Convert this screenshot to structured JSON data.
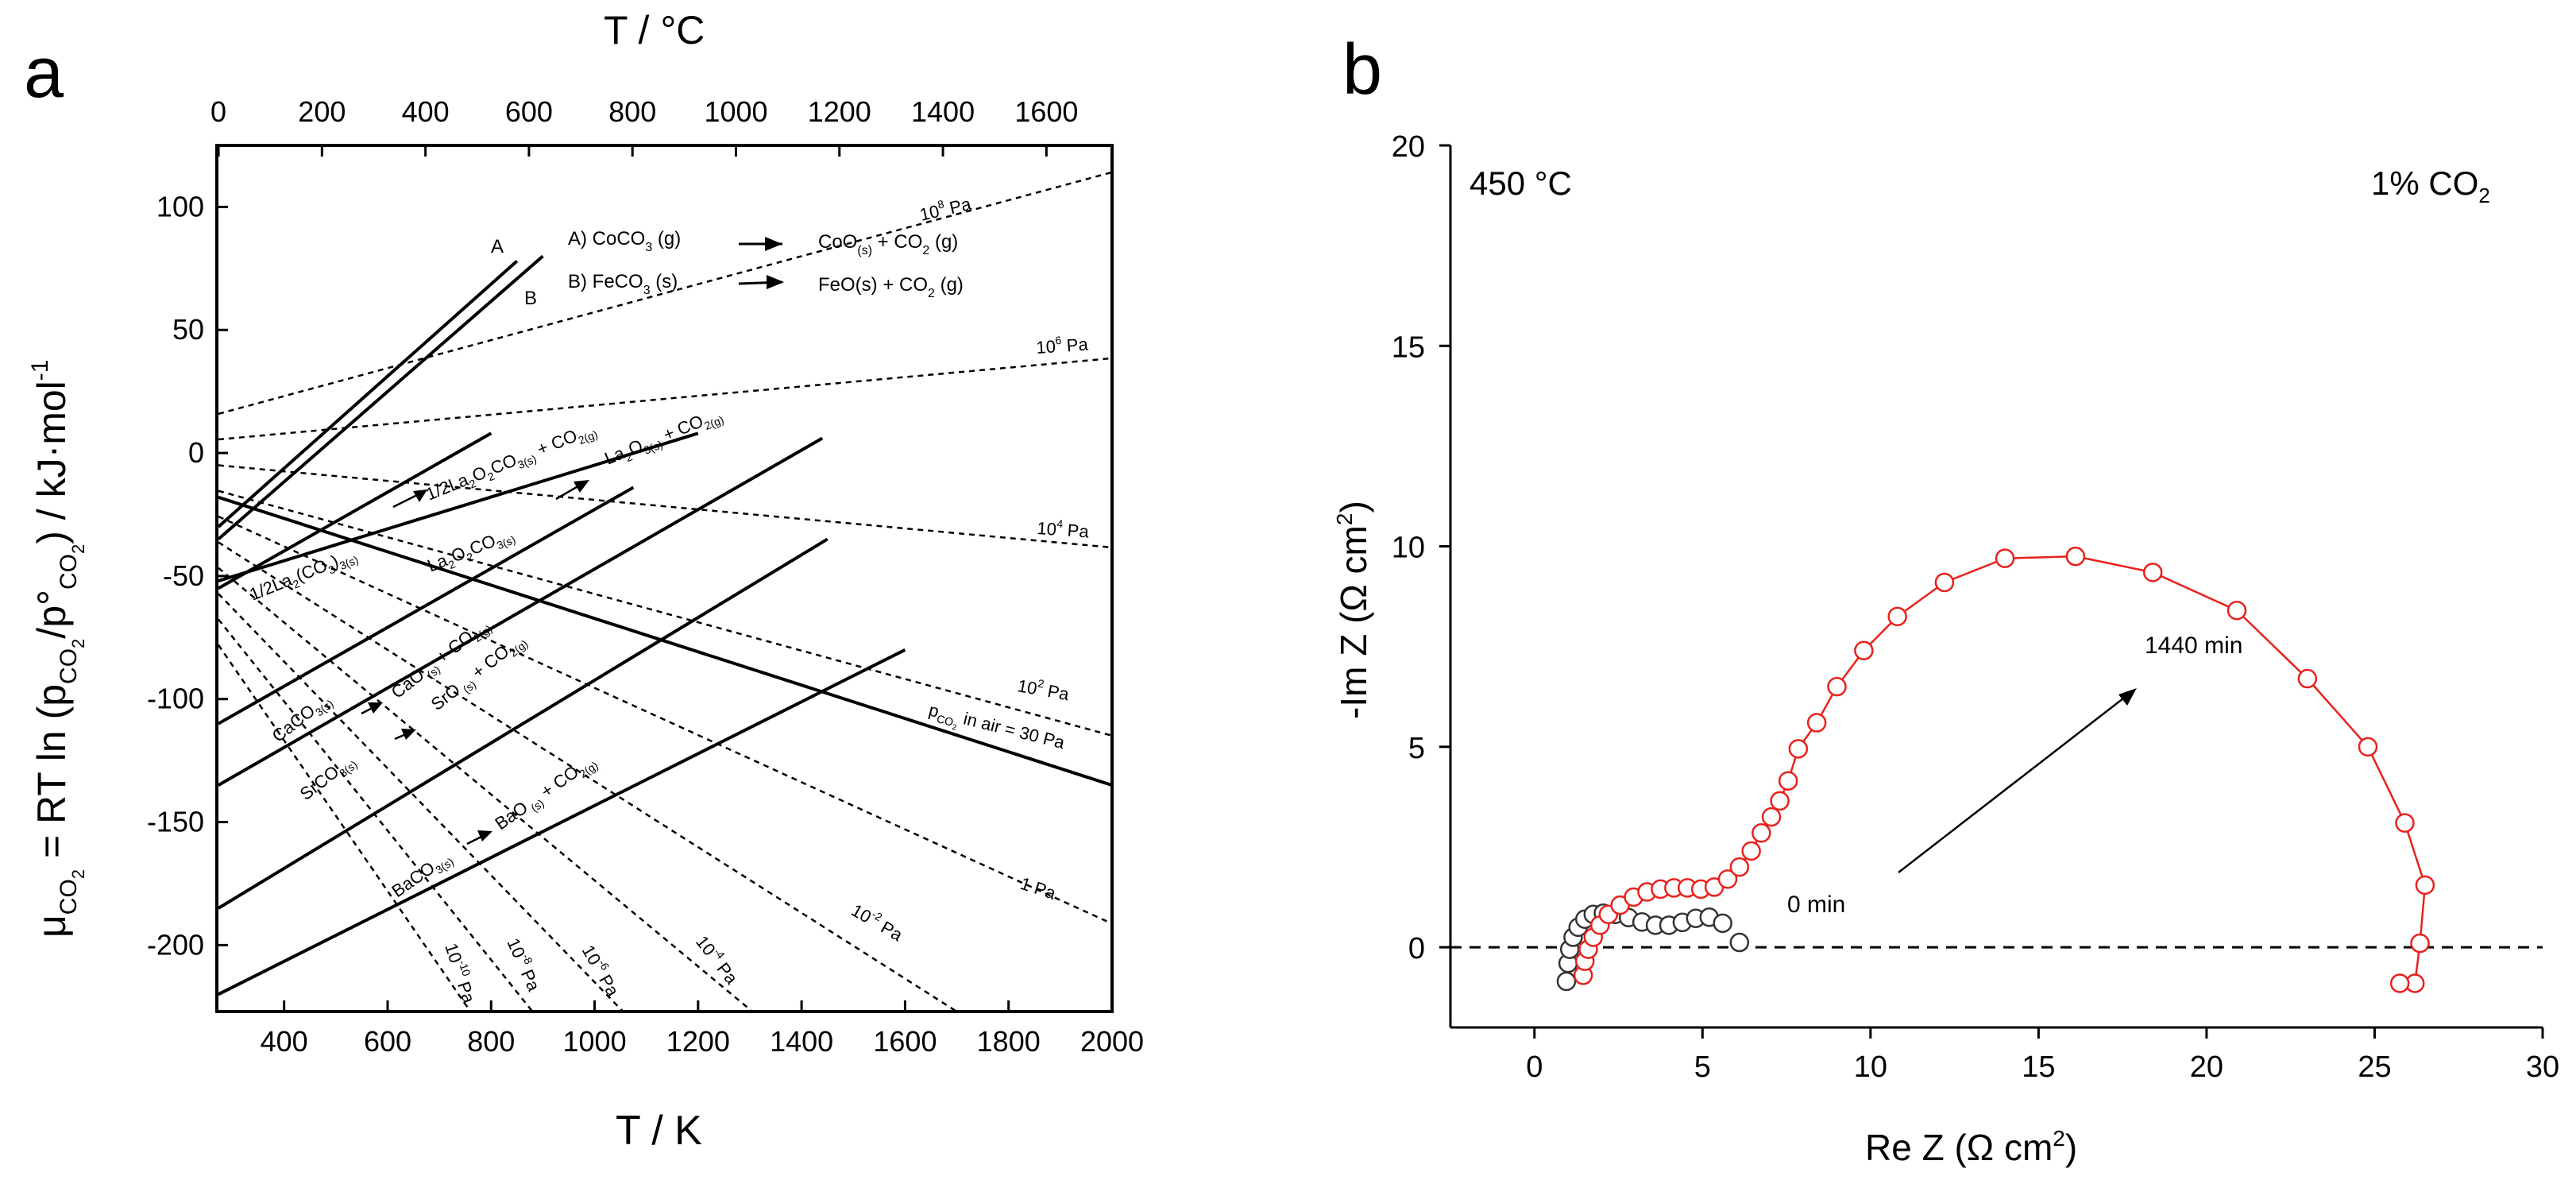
{
  "chart_data": [
    {
      "type": "line",
      "panel_label": "a",
      "title": "",
      "xlabel": "T / K",
      "ylabel_parts": [
        "μ",
        "CO",
        "2",
        " = RT ln (p",
        "CO",
        "2",
        "/p°",
        "CO",
        "2",
        ") / kJ·mol",
        "-1"
      ],
      "xlim": [
        270,
        2000
      ],
      "ylim": [
        -227,
        125
      ],
      "x_ticks": [
        400,
        600,
        800,
        1000,
        1200,
        1400,
        1600,
        1800,
        2000
      ],
      "y_ticks": [
        100,
        50,
        0,
        -50,
        -100,
        -150,
        -200
      ],
      "top_axis": {
        "label": "T / °C",
        "ticks": [
          0,
          200,
          400,
          600,
          800,
          1000,
          1200,
          1400,
          1600
        ]
      },
      "isobars": [
        {
          "label": "10",
          "exp": "8",
          "unit": "Pa",
          "x": [
            273,
            2000
          ],
          "y": [
            15.9,
            114.1
          ]
        },
        {
          "label": "10",
          "exp": "6",
          "unit": "Pa",
          "x": [
            273,
            2000
          ],
          "y": [
            5.5,
            38.5
          ]
        },
        {
          "label": "10",
          "exp": "4",
          "unit": "Pa",
          "x": [
            273,
            2000
          ],
          "y": [
            -5.0,
            -38.4
          ]
        },
        {
          "label": "10",
          "exp": "2",
          "unit": "Pa",
          "x": [
            273,
            2000
          ],
          "y": [
            -15.4,
            -114.9
          ]
        },
        {
          "label": "1",
          "exp": "",
          "unit": "Pa",
          "x": [
            273,
            2000
          ],
          "y": [
            -25.8,
            -191.3
          ]
        },
        {
          "label": "10",
          "exp": "-2",
          "unit": "Pa",
          "x": [
            273,
            1700
          ],
          "y": [
            -36.3,
            -227
          ]
        },
        {
          "label": "10",
          "exp": "-4",
          "unit": "Pa",
          "x": [
            273,
            1305
          ],
          "y": [
            -46.7,
            -227
          ]
        },
        {
          "label": "10",
          "exp": "-6",
          "unit": "Pa",
          "x": [
            273,
            1055
          ],
          "y": [
            -57.2,
            -227
          ]
        },
        {
          "label": "10",
          "exp": "-8",
          "unit": "Pa",
          "x": [
            273,
            880
          ],
          "y": [
            -67.6,
            -227
          ]
        },
        {
          "label": "10",
          "exp": "-10",
          "unit": "Pa",
          "x": [
            273,
            760
          ],
          "y": [
            -78.0,
            -227
          ]
        }
      ],
      "air_line": {
        "label": "p",
        "sub": "CO2",
        "text": " in air = 30 Pa",
        "x": [
          273,
          2000
        ],
        "y": [
          -18.0,
          -135.0
        ]
      },
      "reactions": [
        {
          "name": "A",
          "x": [
            273,
            850
          ],
          "y": [
            -30,
            78
          ]
        },
        {
          "name": "B",
          "x": [
            273,
            900
          ],
          "y": [
            -35,
            80
          ]
        },
        {
          "name": "La2(CO3)3",
          "x": [
            273,
            800
          ],
          "y": [
            -55,
            8
          ]
        },
        {
          "name": "La2O2CO3",
          "x": [
            273,
            1200
          ],
          "y": [
            -52,
            8
          ]
        },
        {
          "name": "CaCO3",
          "x": [
            273,
            1075
          ],
          "y": [
            -110,
            -14
          ]
        },
        {
          "name": "SrCO3",
          "x": [
            273,
            1440
          ],
          "y": [
            -135,
            6
          ]
        },
        {
          "name": "BaCO3",
          "x": [
            273,
            1450
          ],
          "y": [
            -185,
            -35
          ]
        },
        {
          "name": "BaCO3 lower",
          "x": [
            273,
            1600
          ],
          "y": [
            -220,
            -80
          ]
        }
      ],
      "annotations": {
        "letterA": "A",
        "letterB": "B",
        "rxnA_left": "A) CoCO",
        "rxnA_sub": "3",
        "rxnA_phase": " (g)",
        "rxnA_right": "CoO",
        "rxnA_right_s": "(s)",
        "rxnA_right2": " + CO",
        "rxnA_right2_sub": "2",
        "rxnA_right2_end": " (g)",
        "rxnB_left": "B) FeCO",
        "rxnB_sub": "3",
        "rxnB_phase": " (s)",
        "rxnB_right": "FeO(s) + CO",
        "rxnB_right_sub": "2",
        "rxnB_right_end": " (g)",
        "la2_left": "1/2La",
        "la2_mid": "(CO",
        "la2_end": ")",
        "la2_right": "1/2La",
        "la2_right_mid": "O",
        "la2_right_mid2": "CO",
        "la2_right_end": " + CO",
        "la2o2_left": "La",
        "la2o2_mid": "O",
        "la2o2_mid2": "CO",
        "la2o3_right": "La",
        "la2o3_mid": "O",
        "la2o3_end": " + CO",
        "ca_left": "CaCO",
        "ca_right": "CaO",
        "ca_right_end": " + CO",
        "sr_left": "SrCO",
        "sr_right": "SrO",
        "sr_right_end": " + CO",
        "ba_left": "BaCO",
        "ba_right": "BaO",
        "ba_right_end": " + CO",
        "air_label": "p",
        "air_label_end": " in air = 30 Pa"
      }
    },
    {
      "type": "scatter",
      "panel_label": "b",
      "xlabel": "Re Z (Ω cm",
      "xlabel_exp": "2",
      "xlabel_end": ")",
      "ylabel": "-Im Z (Ω cm",
      "ylabel_exp": "2",
      "ylabel_end": ")",
      "xlim": [
        -2.5,
        30
      ],
      "ylim": [
        -2,
        20
      ],
      "x_ticks": [
        0,
        5,
        10,
        15,
        20,
        25,
        30
      ],
      "y_ticks": [
        0,
        5,
        10,
        15,
        20
      ],
      "annotations": {
        "temperature": "450 °C",
        "atmosphere": "1% CO",
        "atmosphere_sub": "2",
        "start_label": "0 min",
        "end_label": "1440 min"
      },
      "series": [
        {
          "name": "0 min",
          "color": "#333333",
          "x": [
            0.95,
            1.0,
            1.05,
            1.15,
            1.3,
            1.5,
            1.75,
            2.05,
            2.4,
            2.8,
            3.2,
            3.6,
            4.0,
            4.4,
            4.8,
            5.2,
            5.6,
            6.1
          ],
          "y": [
            -0.85,
            -0.4,
            -0.05,
            0.25,
            0.5,
            0.7,
            0.82,
            0.85,
            0.82,
            0.74,
            0.63,
            0.55,
            0.55,
            0.62,
            0.72,
            0.75,
            0.6,
            0.12
          ]
        },
        {
          "name": "1440 min",
          "color": "#e8211c",
          "x": [
            1.45,
            1.5,
            1.6,
            1.75,
            1.95,
            2.2,
            2.55,
            2.95,
            3.35,
            3.75,
            4.15,
            4.55,
            4.95,
            5.35,
            5.75,
            6.1,
            6.45,
            6.75,
            7.05,
            7.3,
            7.55,
            7.85,
            8.4,
            9.0,
            9.8,
            10.8,
            12.2,
            14.0,
            16.1,
            18.4,
            20.9,
            23.0,
            24.8,
            25.9,
            26.5,
            26.35,
            26.2,
            25.75
          ],
          "y": [
            -0.7,
            -0.35,
            -0.05,
            0.25,
            0.55,
            0.82,
            1.05,
            1.25,
            1.38,
            1.45,
            1.48,
            1.48,
            1.45,
            1.5,
            1.7,
            2.0,
            2.4,
            2.85,
            3.25,
            3.65,
            4.15,
            4.95,
            5.6,
            6.5,
            7.4,
            8.25,
            9.1,
            9.7,
            9.75,
            9.35,
            8.4,
            6.7,
            5.0,
            3.1,
            1.55,
            0.1,
            -0.9,
            -0.9
          ]
        }
      ]
    }
  ]
}
